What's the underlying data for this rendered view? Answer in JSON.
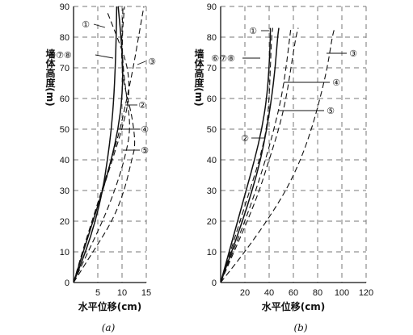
{
  "chart_data": [
    {
      "type": "line",
      "caption": "(a)",
      "ylabel": "墙体高度(m)",
      "xlabel": "水平位移(cm)",
      "xlim": [
        0,
        15
      ],
      "ylim": [
        0,
        90
      ],
      "xticks": [
        5,
        10,
        15
      ],
      "yticks": [
        0,
        10,
        20,
        30,
        40,
        50,
        60,
        70,
        80,
        90
      ],
      "grid": true,
      "series": [
        {
          "name": "①",
          "style": "dashed",
          "points": [
            [
              0,
              0
            ],
            [
              2,
              10
            ],
            [
              4,
              20
            ],
            [
              6,
              30
            ],
            [
              8,
              40
            ],
            [
              10,
              50
            ],
            [
              11.5,
              60
            ],
            [
              11.3,
              70
            ],
            [
              9,
              80
            ],
            [
              7,
              88
            ]
          ]
        },
        {
          "name": "②",
          "style": "dashed",
          "points": [
            [
              0,
              0
            ],
            [
              3,
              10
            ],
            [
              6,
              20
            ],
            [
              8.5,
              30
            ],
            [
              10.5,
              40
            ],
            [
              11.8,
              50
            ],
            [
              11,
              60
            ],
            [
              10.2,
              70
            ],
            [
              10,
              80
            ],
            [
              10.5,
              90
            ]
          ]
        },
        {
          "name": "③",
          "style": "dashed",
          "points": [
            [
              0,
              0
            ],
            [
              1.8,
              10
            ],
            [
              3.8,
              20
            ],
            [
              5.8,
              30
            ],
            [
              7.8,
              40
            ],
            [
              9.6,
              50
            ],
            [
              11,
              60
            ],
            [
              12.3,
              70
            ],
            [
              13.4,
              80
            ],
            [
              14.5,
              90
            ]
          ]
        },
        {
          "name": "④",
          "style": "solid",
          "points": [
            [
              0,
              0
            ],
            [
              2,
              10
            ],
            [
              4,
              20
            ],
            [
              6,
              30
            ],
            [
              7.8,
              40
            ],
            [
              9.2,
              50
            ],
            [
              10,
              60
            ],
            [
              10.2,
              70
            ],
            [
              9.8,
              80
            ],
            [
              9.2,
              90
            ]
          ]
        },
        {
          "name": "⑤",
          "style": "dashed",
          "points": [
            [
              0,
              0
            ],
            [
              4,
              10
            ],
            [
              8,
              20
            ],
            [
              10.5,
              30
            ],
            [
              12,
              40
            ],
            [
              12.8,
              45
            ],
            [
              12,
              55
            ],
            [
              10.3,
              65
            ],
            [
              9.8,
              75
            ],
            [
              10.2,
              90
            ]
          ]
        },
        {
          "name": "⑥⑦⑧",
          "style": "solid",
          "points": [
            [
              0,
              0
            ],
            [
              2.5,
              10
            ],
            [
              4.5,
              20
            ],
            [
              6,
              30
            ],
            [
              7,
              40
            ],
            [
              7.8,
              50
            ],
            [
              8.3,
              60
            ],
            [
              8.6,
              70
            ],
            [
              8.8,
              80
            ],
            [
              8.9,
              90
            ]
          ]
        }
      ],
      "labels": [
        "①",
        "⑥⑦⑧",
        "③",
        "②",
        "④",
        "⑤"
      ]
    },
    {
      "type": "line",
      "caption": "(b)",
      "ylabel": "墙体高度(m)",
      "xlabel": "水平位移(cm)",
      "xlim": [
        0,
        120
      ],
      "ylim": [
        0,
        90
      ],
      "xticks": [
        20,
        40,
        60,
        80,
        100,
        120
      ],
      "yticks": [
        0,
        10,
        20,
        30,
        40,
        50,
        60,
        70,
        80,
        90
      ],
      "grid": true,
      "series": [
        {
          "name": "①",
          "style": "dashed",
          "points": [
            [
              0,
              0
            ],
            [
              8,
              10
            ],
            [
              16,
              20
            ],
            [
              24,
              30
            ],
            [
              32,
              40
            ],
            [
              38,
              50
            ],
            [
              40,
              60
            ],
            [
              41,
              70
            ],
            [
              42,
              80
            ],
            [
              43,
              83
            ]
          ]
        },
        {
          "name": "②",
          "style": "solid",
          "points": [
            [
              0,
              0
            ],
            [
              9,
              10
            ],
            [
              18,
              20
            ],
            [
              26,
              30
            ],
            [
              33,
              40
            ],
            [
              38,
              50
            ],
            [
              42,
              60
            ],
            [
              45,
              70
            ],
            [
              47,
              80
            ],
            [
              48,
              83
            ]
          ]
        },
        {
          "name": "③",
          "style": "dashed",
          "points": [
            [
              0,
              0
            ],
            [
              20,
              10
            ],
            [
              38,
              20
            ],
            [
              54,
              30
            ],
            [
              66,
              40
            ],
            [
              75,
              50
            ],
            [
              82,
              60
            ],
            [
              88,
              70
            ],
            [
              92,
              80
            ],
            [
              94,
              83
            ]
          ]
        },
        {
          "name": "④",
          "style": "dashed",
          "points": [
            [
              0,
              0
            ],
            [
              11,
              10
            ],
            [
              22,
              20
            ],
            [
              32,
              30
            ],
            [
              40,
              40
            ],
            [
              48,
              50
            ],
            [
              54,
              60
            ],
            [
              58,
              70
            ],
            [
              62,
              80
            ],
            [
              64,
              83
            ]
          ]
        },
        {
          "name": "⑤",
          "style": "dashed",
          "points": [
            [
              0,
              0
            ],
            [
              10,
              10
            ],
            [
              20,
              20
            ],
            [
              29,
              30
            ],
            [
              37,
              40
            ],
            [
              44,
              50
            ],
            [
              50,
              60
            ],
            [
              54,
              70
            ],
            [
              57,
              80
            ],
            [
              58,
              83
            ]
          ]
        },
        {
          "name": "⑥⑦⑧",
          "style": "solid",
          "points": [
            [
              0,
              0
            ],
            [
              7,
              10
            ],
            [
              14,
              20
            ],
            [
              21,
              30
            ],
            [
              28,
              40
            ],
            [
              34,
              50
            ],
            [
              38,
              60
            ],
            [
              40,
              70
            ],
            [
              41,
              80
            ],
            [
              41,
              83
            ]
          ]
        }
      ],
      "labels": [
        "①",
        "⑥⑦⑧",
        "③",
        "④",
        "⑤",
        "②"
      ]
    }
  ]
}
